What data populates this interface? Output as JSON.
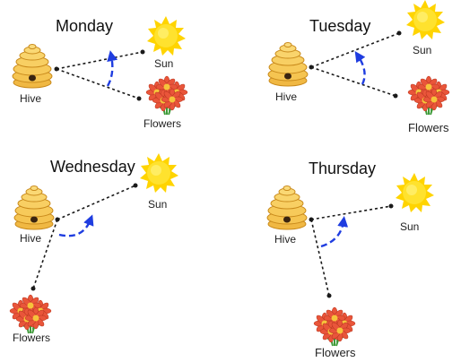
{
  "labels": {
    "hive": "Hive",
    "sun": "Sun",
    "flowers": "Flowers"
  },
  "panels": [
    {
      "day": "Monday"
    },
    {
      "day": "Tuesday"
    },
    {
      "day": "Wednesday"
    },
    {
      "day": "Thursday"
    }
  ],
  "colors": {
    "hive_body": "#f5c451",
    "hive_stroke": "#c98a1b",
    "sun": "#ffe22e",
    "sun_ray": "#ffd400",
    "petal": "#e9553a",
    "flower_center": "#f6c33b",
    "leaf": "#3f9b3a",
    "angle_arrow": "#1f3de0",
    "dashed_line": "#1a1a1a"
  },
  "icons": [
    "beehive-icon",
    "sun-icon",
    "flowers-icon",
    "angle-arrow-icon"
  ]
}
